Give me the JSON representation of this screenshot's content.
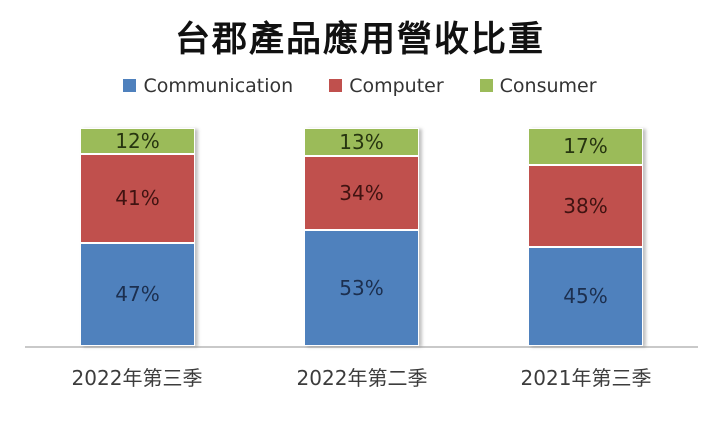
{
  "chart_data": {
    "type": "bar",
    "stacked": true,
    "title": "台郡產品應用營收比重",
    "categories": [
      "2022年第三季",
      "2022年第二季",
      "2021年第三季"
    ],
    "series": [
      {
        "name": "Communication",
        "values": [
          47,
          53,
          45
        ],
        "color": "#4f81bd",
        "label_color": "#1c2f4f"
      },
      {
        "name": "Computer",
        "values": [
          41,
          34,
          38
        ],
        "color": "#c0504d",
        "label_color": "#401311"
      },
      {
        "name": "Consumer",
        "values": [
          12,
          13,
          17
        ],
        "color": "#9bbb59",
        "label_color": "#273510"
      }
    ],
    "data_labels": {
      "Communication": [
        "47%",
        "53%",
        "45%"
      ],
      "Computer": [
        "41%",
        "34%",
        "38%"
      ],
      "Consumer": [
        "12%",
        "13%",
        "17%"
      ]
    },
    "value_format": "percent",
    "ylim": [
      0,
      100
    ],
    "grid": false,
    "legend_position": "top",
    "axis_line_color": "#c9c9c9"
  }
}
